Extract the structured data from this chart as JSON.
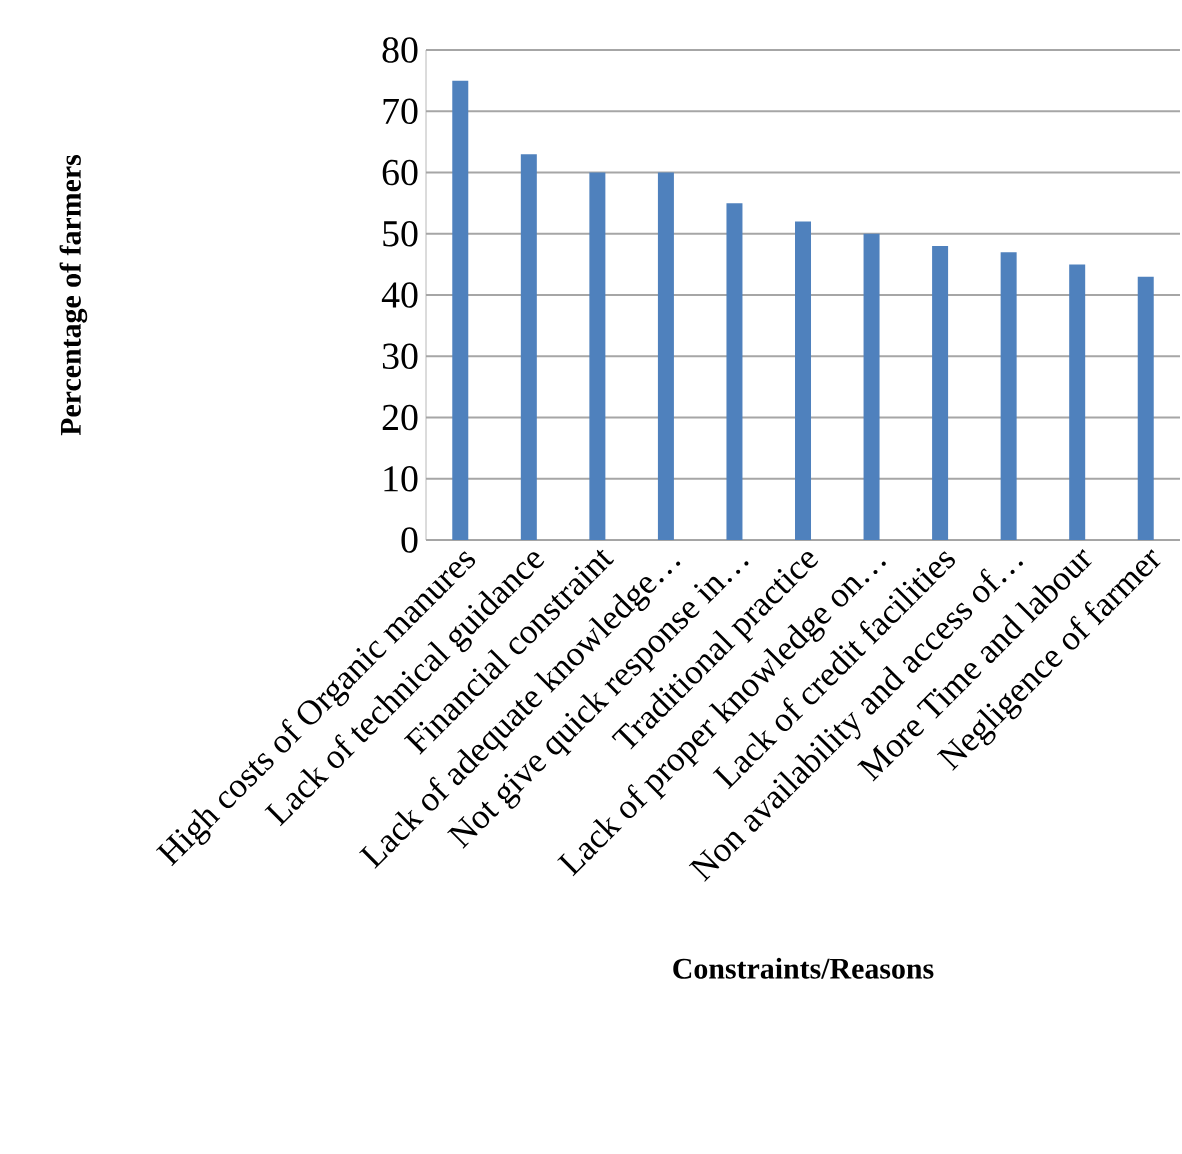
{
  "chart_data": {
    "type": "bar",
    "xlabel": "Constraints/Reasons",
    "ylabel": "Percentage of farmers",
    "categories": [
      "High costs of Organic manures",
      "Lack of technical guidance",
      "Financial constraint",
      "Lack of adequate knowledge…",
      "Not give quick response in…",
      "Traditional practice",
      "Lack of proper knowledge on…",
      "Lack of credit facilities",
      "Non availability and access of…",
      "More Time and labour",
      "Negligence of farmer"
    ],
    "values": [
      75,
      63,
      60,
      60,
      55,
      52,
      50,
      48,
      47,
      45,
      43
    ],
    "color": "#4f81bd",
    "ylim": [
      0,
      80
    ],
    "yticks": [
      0,
      10,
      20,
      30,
      40,
      50,
      60,
      70,
      80
    ],
    "grid": "y"
  }
}
